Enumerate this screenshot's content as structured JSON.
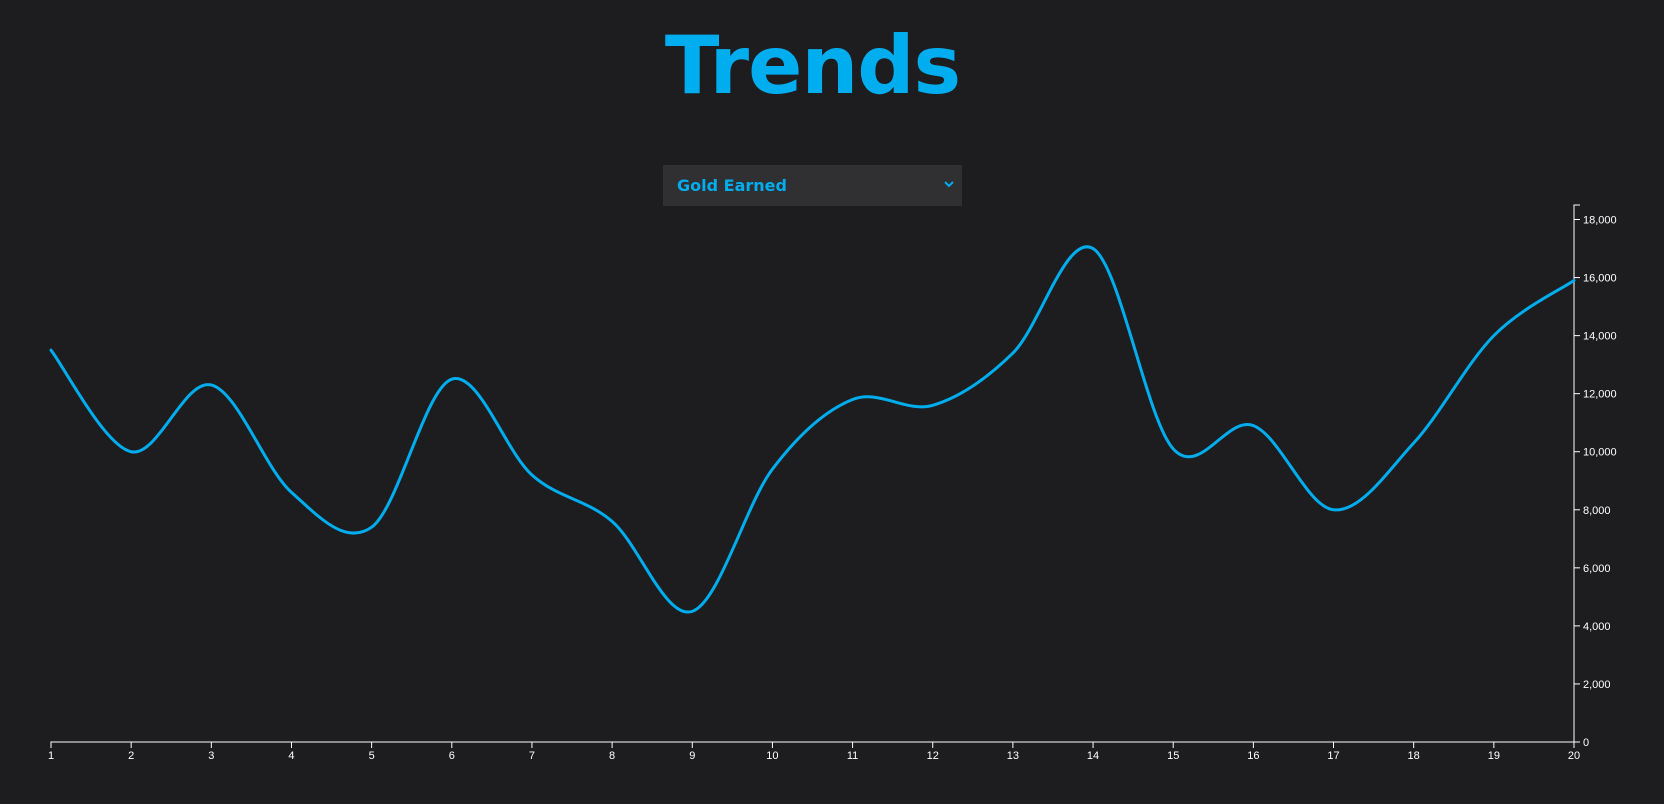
{
  "page": {
    "title": "Trends"
  },
  "metric_select": {
    "selected": "Gold Earned"
  },
  "colors": {
    "background": "#1d1d1f",
    "accent": "#00aef0",
    "select_bg": "#303032",
    "axis": "#ffffff"
  },
  "icons": {
    "select_arrow": "chevron-down-icon"
  },
  "chart_data": {
    "type": "line",
    "title": "",
    "xlabel": "",
    "ylabel": "",
    "x": [
      1,
      2,
      3,
      4,
      5,
      6,
      7,
      8,
      9,
      10,
      11,
      12,
      13,
      14,
      15,
      16,
      17,
      18,
      19,
      20
    ],
    "series": [
      {
        "values": [
          13500,
          10000,
          12300,
          8600,
          7400,
          12500,
          9200,
          7600,
          4500,
          9400,
          11800,
          11600,
          13400,
          17000,
          10100,
          10900,
          8000,
          10300,
          14000,
          15900
        ]
      }
    ],
    "xlim": [
      1,
      20
    ],
    "ylim": [
      0,
      18500
    ],
    "x_ticks": [
      "1",
      "2",
      "3",
      "4",
      "5",
      "6",
      "7",
      "8",
      "9",
      "10",
      "11",
      "12",
      "13",
      "14",
      "15",
      "16",
      "17",
      "18",
      "19",
      "20"
    ],
    "y_ticks": [
      "0",
      "2,000",
      "4,000",
      "6,000",
      "8,000",
      "10,000",
      "12,000",
      "14,000",
      "16,000",
      "18,000"
    ],
    "y_axis_side": "right",
    "grid": false,
    "legend": "none",
    "interpolation": "smooth"
  }
}
